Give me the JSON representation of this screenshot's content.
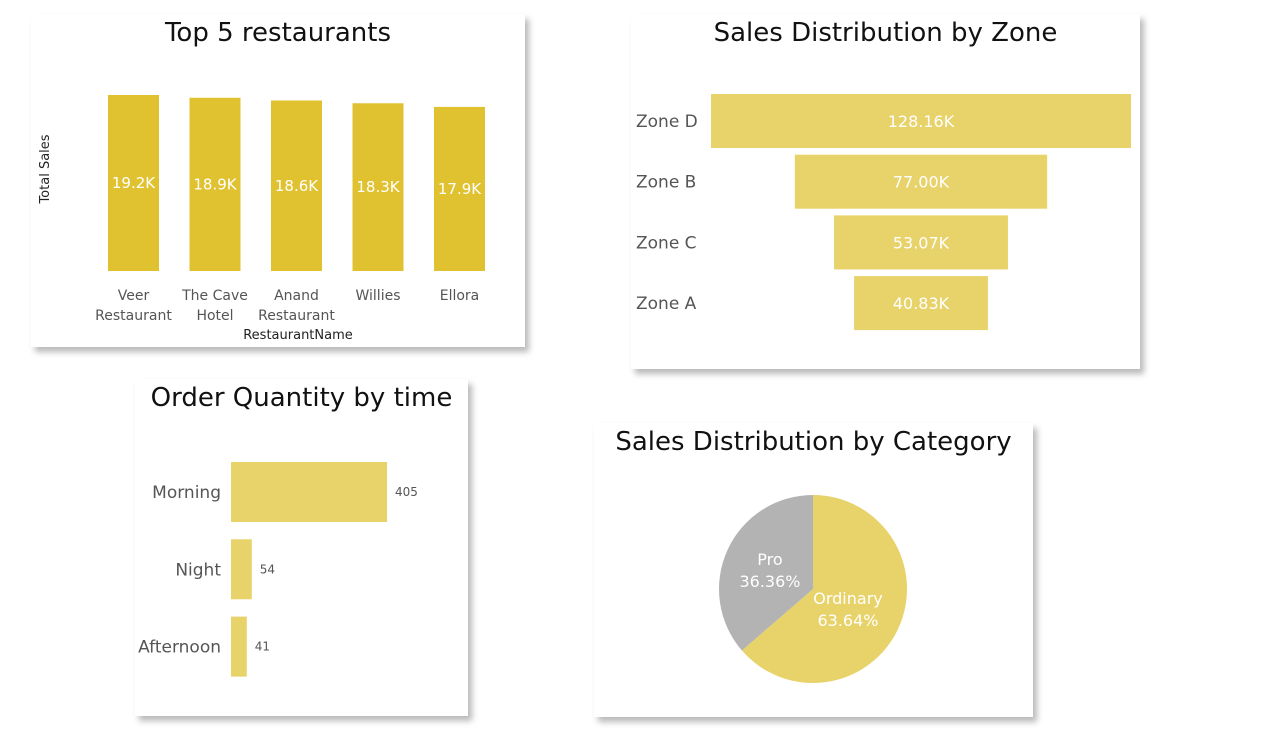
{
  "chart_data": [
    {
      "id": "top5",
      "type": "bar",
      "title": "Top 5 restaurants",
      "xlabel": "RestaurantName",
      "ylabel": "Total Sales",
      "categories": [
        [
          "Veer",
          "Restaurant"
        ],
        [
          "The Cave",
          "Hotel"
        ],
        [
          "Anand",
          "Restaurant"
        ],
        [
          "Willies"
        ],
        [
          "Ellora"
        ]
      ],
      "values": [
        19200,
        18900,
        18600,
        18300,
        17900
      ],
      "data_labels": [
        "19.2K",
        "18.9K",
        "18.6K",
        "18.3K",
        "17.9K"
      ],
      "ylim": [
        0,
        19200
      ],
      "color": "#E0C231"
    },
    {
      "id": "zone",
      "type": "bar",
      "orientation": "funnel",
      "title": "Sales Distribution by Zone",
      "categories": [
        "Zone D",
        "Zone B",
        "Zone C",
        "Zone A"
      ],
      "values": [
        128160,
        77000,
        53070,
        40830
      ],
      "data_labels": [
        "128.16K",
        "77.00K",
        "53.07K",
        "40.83K"
      ],
      "color": "#E8D26A"
    },
    {
      "id": "time",
      "type": "bar",
      "orientation": "horizontal",
      "title": "Order Quantity by time",
      "categories": [
        "Morning",
        "Night",
        "Afternoon"
      ],
      "values": [
        405,
        54,
        41
      ],
      "data_labels": [
        "405",
        "54",
        "41"
      ],
      "color": "#E8D26A"
    },
    {
      "id": "category",
      "type": "pie",
      "title": "Sales Distribution by Category",
      "categories": [
        "Ordinary",
        "Pro"
      ],
      "values": [
        63.64,
        36.36
      ],
      "data_labels": [
        [
          "Ordinary",
          "63.64%"
        ],
        [
          "Pro",
          "36.36%"
        ]
      ],
      "colors": [
        "#E8D26A",
        "#B3B3B3"
      ]
    }
  ]
}
